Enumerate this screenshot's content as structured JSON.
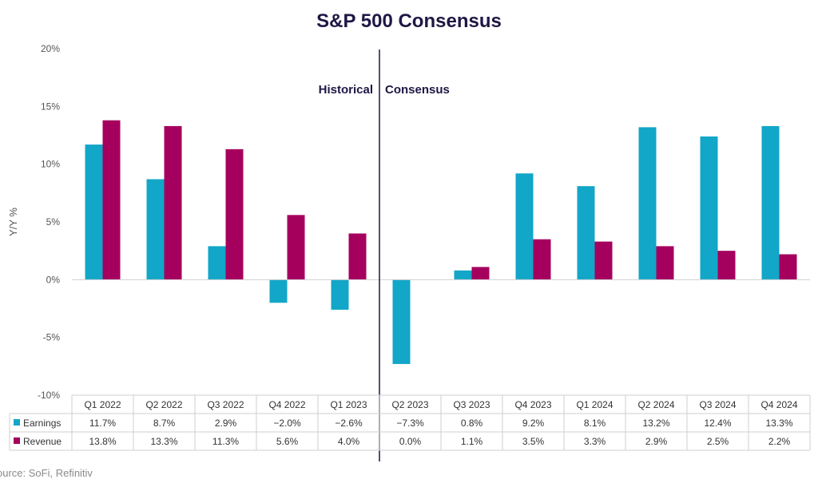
{
  "chart_data": {
    "type": "bar",
    "title": "S&P 500 Consensus",
    "ylabel": "Y/Y %",
    "xlabel": "",
    "ylim": [
      -10,
      20
    ],
    "yticks": [
      -10,
      -5,
      0,
      5,
      10,
      15,
      20
    ],
    "ytick_labels": [
      "-10%",
      "-5%",
      "0%",
      "5%",
      "10%",
      "15%",
      "20%"
    ],
    "categories": [
      "Q1 2022",
      "Q2 2022",
      "Q3 2022",
      "Q4 2022",
      "Q1 2023",
      "Q2 2023",
      "Q3 2023",
      "Q4 2023",
      "Q1 2024",
      "Q2 2024",
      "Q3 2024",
      "Q4 2024"
    ],
    "series": [
      {
        "name": "Earnings",
        "color": "#12a6c8",
        "values": [
          11.7,
          8.7,
          2.9,
          -2.0,
          -2.6,
          -7.3,
          0.8,
          9.2,
          8.1,
          13.2,
          12.4,
          13.3
        ],
        "labels": [
          "11.7%",
          "8.7%",
          "2.9%",
          "−2.0%",
          "−2.6%",
          "−7.3%",
          "0.8%",
          "9.2%",
          "8.1%",
          "13.2%",
          "12.4%",
          "13.3%"
        ]
      },
      {
        "name": "Revenue",
        "color": "#a5005e",
        "values": [
          13.8,
          13.3,
          11.3,
          5.6,
          4.0,
          0.0,
          1.1,
          3.5,
          3.3,
          2.9,
          2.5,
          2.2
        ],
        "labels": [
          "13.8%",
          "13.3%",
          "11.3%",
          "5.6%",
          "4.0%",
          "0.0%",
          "1.1%",
          "3.5%",
          "3.3%",
          "2.9%",
          "2.5%",
          "2.2%"
        ]
      }
    ],
    "annotations": {
      "historical": "Historical",
      "consensus": "Consensus"
    },
    "divider_after_category": "Q1 2023",
    "grid": false,
    "legend": "table-bottom"
  },
  "source": "ource: SoFi, Refinitiv",
  "colors": {
    "title": "#1f1745",
    "axis_text": "#555555",
    "divider": "#1f1745"
  }
}
